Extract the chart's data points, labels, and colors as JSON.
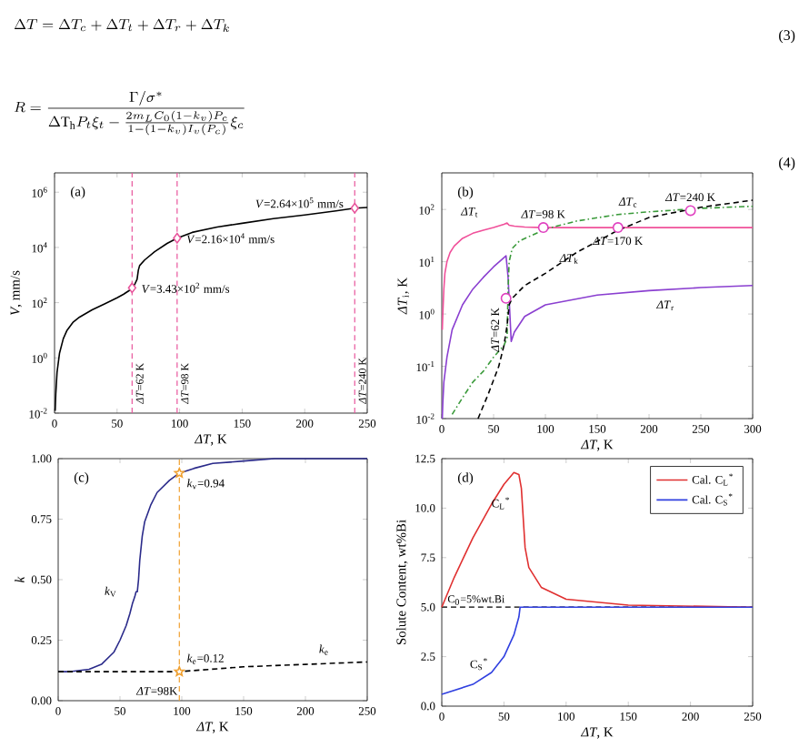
{
  "chart_data": [
    {
      "type": "other",
      "annotations": [
        "\\Delta T=\\Delta T_c+\\Delta T_t+\\Delta T_r+\\Delta T_k",
        "(3)",
        "R=\\frac{\\Gamma/\\sigma^{*}}{\\Delta \\mathrm{T_h} P_t\\xi_t-\\frac{2m_L C_0(1-k_v)P_c}{1-(1-k_v)I_v(P_c)}\\xi_c}",
        "(4)"
      ]
    },
    {
      "type": "line",
      "title": "(a)",
      "xlabel": "*ΔT*, K",
      "ylabel": "*V*, mm/s",
      "log": "y",
      "xlim": [
        0,
        250
      ],
      "xticks": [
        0,
        50,
        100,
        150,
        200,
        250
      ],
      "ylim": [
        0.01,
        5000000
      ],
      "yticks": [
        {
          "value": 0.01,
          "label": "10$^{-2}$"
        },
        {
          "value": 1,
          "label": "10$^{0}$"
        },
        {
          "value": 100,
          "label": "10$^{2}$"
        },
        {
          "value": 10000,
          "label": "10$^{4}$"
        },
        {
          "value": 1000000,
          "label": "10$^{6}$"
        }
      ],
      "series": [
        {
          "color": "#000000",
          "x": [
            0.5,
            1,
            2,
            4,
            7,
            10,
            15,
            20,
            30,
            40,
            50,
            55,
            60,
            62,
            64,
            66,
            67,
            68,
            72,
            80,
            90,
            98,
            110,
            130,
            150,
            175,
            200,
            225,
            240,
            250
          ],
          "values": [
            0.012,
            0.05,
            0.3,
            1.5,
            5,
            10,
            20,
            30,
            55,
            90,
            150,
            200,
            280,
            343,
            450,
            700,
            1500,
            2200,
            3500,
            7000,
            14000,
            21600,
            35000,
            55000,
            75000,
            110000,
            150000,
            210000,
            264000,
            280000
          ]
        },
        {
          "type": "scatter",
          "marker": "diamond",
          "color": "#e8559c",
          "x": [
            62,
            98,
            240
          ],
          "values": [
            343,
            21600,
            264000
          ]
        }
      ],
      "ref_lines": [
        {
          "axis": "x",
          "value": 62,
          "label": "*ΔT*=62 K",
          "color": "#e8559c",
          "line_style": "dashed"
        },
        {
          "axis": "x",
          "value": 98,
          "label": "*ΔT*=98 K",
          "color": "#e8559c",
          "line_style": "dashed"
        },
        {
          "axis": "x",
          "value": 240,
          "label": "*ΔT*=240 K",
          "color": "#e8559c",
          "line_style": "dashed"
        }
      ],
      "annotations": [
        {
          "text": "*V*=3.43×10$^{2}$ mm/s",
          "x": 62,
          "y": 343
        },
        {
          "text": "*V*=2.16×10$^{4}$ mm/s",
          "x": 98,
          "y": 21600
        },
        {
          "text": "*V*=2.64×10$^{5}$ mm/s",
          "x": 240,
          "y": 264000
        }
      ]
    },
    {
      "type": "line",
      "title": "(b)",
      "xlabel": "*ΔT*, K",
      "ylabel": "*ΔT*$_{i}$, K",
      "log": "y",
      "xlim": [
        0,
        300
      ],
      "xticks": [
        0,
        50,
        100,
        150,
        200,
        250,
        300
      ],
      "ylim": [
        0.01,
        500
      ],
      "yticks": [
        {
          "value": 0.01,
          "label": "10$^{-2}$"
        },
        {
          "value": 0.1,
          "label": "10$^{-1}$"
        },
        {
          "value": 1,
          "label": "10$^{0}$"
        },
        {
          "value": 10,
          "label": "10$^{1}$"
        },
        {
          "value": 100,
          "label": "10$^{2}$"
        }
      ],
      "series": [
        {
          "color": "#f0509a",
          "x": [
            0.5,
            1,
            2,
            3,
            5,
            8,
            12,
            20,
            30,
            40,
            50,
            60,
            63,
            65,
            70,
            80,
            98,
            150,
            200,
            250,
            300
          ],
          "values": [
            0.5,
            1,
            3,
            6,
            10,
            15,
            20,
            28,
            35,
            40,
            45,
            52,
            55,
            50,
            48,
            46,
            45,
            45,
            45,
            45,
            45
          ]
        },
        {
          "color": "#8a3fd0",
          "x": [
            0.5,
            1,
            2,
            5,
            10,
            20,
            30,
            40,
            50,
            60,
            62,
            64,
            67,
            70,
            80,
            100,
            150,
            200,
            250,
            300
          ],
          "values": [
            0.01,
            0.02,
            0.05,
            0.15,
            0.5,
            1.5,
            3,
            5,
            8,
            12,
            13,
            5,
            0.3,
            0.45,
            0.9,
            1.5,
            2.3,
            2.8,
            3.2,
            3.5
          ]
        },
        {
          "color": "#3a9a3a",
          "line_style": "dashdot",
          "x": [
            10,
            20,
            30,
            40,
            50,
            60,
            63,
            64,
            65,
            68,
            75,
            100,
            130,
            170,
            200,
            250,
            300
          ],
          "values": [
            0.012,
            0.025,
            0.05,
            0.08,
            0.15,
            0.25,
            0.35,
            3,
            10,
            18,
            25,
            42,
            60,
            80,
            90,
            105,
            115
          ]
        },
        {
          "color": "#000000",
          "line_style": "dashed",
          "x": [
            35,
            45,
            55,
            60,
            63,
            65,
            68,
            80,
            100,
            130,
            170,
            200,
            250,
            300
          ],
          "values": [
            0.01,
            0.03,
            0.1,
            0.25,
            0.6,
            1.5,
            2,
            3.5,
            6,
            15,
            40,
            70,
            110,
            150
          ]
        },
        {
          "type": "scatter",
          "marker": "circle",
          "color": "#e040c0",
          "x": [
            62,
            98,
            170,
            240
          ],
          "values": [
            2,
            45,
            45,
            95
          ]
        }
      ],
      "annotations": [
        {
          "text": "*ΔT*=98 K",
          "x": 98,
          "y": 45
        },
        {
          "text": "*ΔT*=170 K",
          "x": 170,
          "y": 45
        },
        {
          "text": "*ΔT*=240 K",
          "x": 240,
          "y": 95
        },
        {
          "text": "*ΔT*=62 K",
          "x": 62,
          "y": 2
        },
        "*ΔT*$_{t}$",
        "*ΔT*$_{c}$",
        "*ΔT*$_{k}$",
        "*ΔT*$_{r}$"
      ]
    },
    {
      "type": "line",
      "title": "(c)",
      "xlabel": "*ΔT*, K",
      "ylabel": "*k*",
      "xlim": [
        0,
        250
      ],
      "xticks": [
        0,
        50,
        100,
        150,
        200,
        250
      ],
      "ylim": [
        0,
        1
      ],
      "yticks": [
        {
          "value": 0,
          "label": "0.00"
        },
        {
          "value": 0.25,
          "label": "0.25"
        },
        {
          "value": 0.5,
          "label": "0.50"
        },
        {
          "value": 0.75,
          "label": "0.75"
        },
        {
          "value": 1,
          "label": "1.00"
        }
      ],
      "series": [
        {
          "color": "#2a2a8a",
          "x": [
            0,
            10,
            25,
            35,
            45,
            50,
            55,
            58,
            60,
            62,
            63,
            64,
            65,
            66,
            68,
            70,
            75,
            80,
            90,
            98,
            110,
            125,
            150,
            175,
            200,
            250
          ],
          "values": [
            0.12,
            0.12,
            0.13,
            0.15,
            0.2,
            0.25,
            0.31,
            0.36,
            0.4,
            0.43,
            0.45,
            0.45,
            0.5,
            0.58,
            0.68,
            0.74,
            0.81,
            0.86,
            0.91,
            0.94,
            0.96,
            0.98,
            0.99,
            1.0,
            1.0,
            1.0
          ]
        },
        {
          "color": "#000000",
          "line_style": "dashed",
          "x": [
            0,
            50,
            98,
            150,
            200,
            250
          ],
          "values": [
            0.12,
            0.12,
            0.12,
            0.14,
            0.15,
            0.16
          ]
        },
        {
          "type": "scatter",
          "marker": "star",
          "color": "#f0a030",
          "x": [
            98,
            98
          ],
          "values": [
            0.94,
            0.12
          ]
        }
      ],
      "ref_lines": [
        {
          "axis": "x",
          "value": 98,
          "color": "#f0a030",
          "line_style": "dashed"
        }
      ],
      "annotations": [
        {
          "text": "*k*$_{v}$=0.94",
          "x": 98,
          "y": 0.94
        },
        {
          "text": "*k*$_{e}$=0.12",
          "x": 98,
          "y": 0.12
        },
        "*ΔT*=98K",
        "*k*$_{V}$",
        "*k*$_{e}$"
      ]
    },
    {
      "type": "line",
      "title": "(d)",
      "xlabel": "*ΔT*, K",
      "ylabel": "Solute Content, wt%Bi",
      "xlim": [
        0,
        250
      ],
      "xticks": [
        0,
        50,
        100,
        150,
        200,
        250
      ],
      "ylim": [
        0,
        12.5
      ],
      "yticks": [
        {
          "value": 0,
          "label": "0.0"
        },
        2.5,
        {
          "value": 5,
          "label": "5.0"
        },
        7.5,
        {
          "value": 10,
          "label": "10.0"
        },
        12.5
      ],
      "legend": "top right",
      "series": [
        {
          "name": "Cal. C$_{L}$$^{*}$",
          "color": "#e03030",
          "x": [
            0,
            10,
            25,
            40,
            50,
            58,
            62,
            64,
            65,
            67,
            70,
            80,
            100,
            150,
            250
          ],
          "values": [
            5,
            6.5,
            8.5,
            10.2,
            11.2,
            11.8,
            11.7,
            11,
            10,
            8,
            7,
            6,
            5.4,
            5.1,
            5.0
          ]
        },
        {
          "name": "Cal. C$_{S}$$^{*}$",
          "color": "#3040e0",
          "x": [
            0,
            25,
            40,
            50,
            58,
            62,
            63,
            65,
            250
          ],
          "values": [
            0.6,
            1.1,
            1.7,
            2.5,
            3.6,
            4.5,
            5,
            5,
            5
          ]
        }
      ],
      "ref_lines": [
        {
          "axis": "y",
          "value": 5,
          "label": "C$_{0}$=5%wt.Bi",
          "color": "#000000",
          "line_style": "dashed"
        }
      ],
      "annotations": [
        "C$_{L}$$^{*}$",
        "C$_{S}$$^{*}$"
      ]
    }
  ]
}
